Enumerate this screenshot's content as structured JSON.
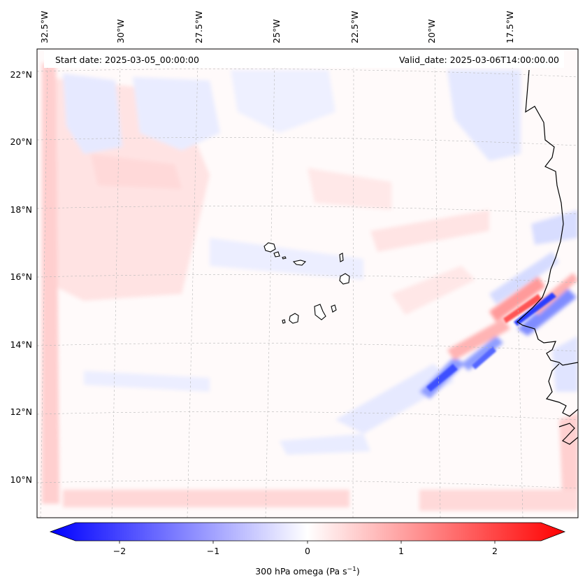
{
  "header": {
    "start_date": "Start date: 2025-03-05_00:00:00",
    "valid_date": "Valid_date: 2025-03-06T14:00:00.00"
  },
  "longitude_labels": [
    "32.5°W",
    "30°W",
    "27.5°W",
    "25°W",
    "22.5°W",
    "20°W",
    "17.5°W"
  ],
  "latitude_labels": [
    "22°N",
    "20°N",
    "18°N",
    "16°N",
    "14°N",
    "12°N",
    "10°N"
  ],
  "colorbar": {
    "tick_labels": [
      "−2",
      "−1",
      "0",
      "1",
      "2"
    ],
    "label_text": "300 hPa omega (Pa s",
    "label_exponent": "−1",
    "label_close": ")",
    "colors": {
      "negative": "#0000ff",
      "zero": "#ffffff",
      "positive": "#ff0000"
    }
  },
  "map": {
    "colors": {
      "coastline": "#000000",
      "gridline": "#b8b8b8"
    }
  }
}
